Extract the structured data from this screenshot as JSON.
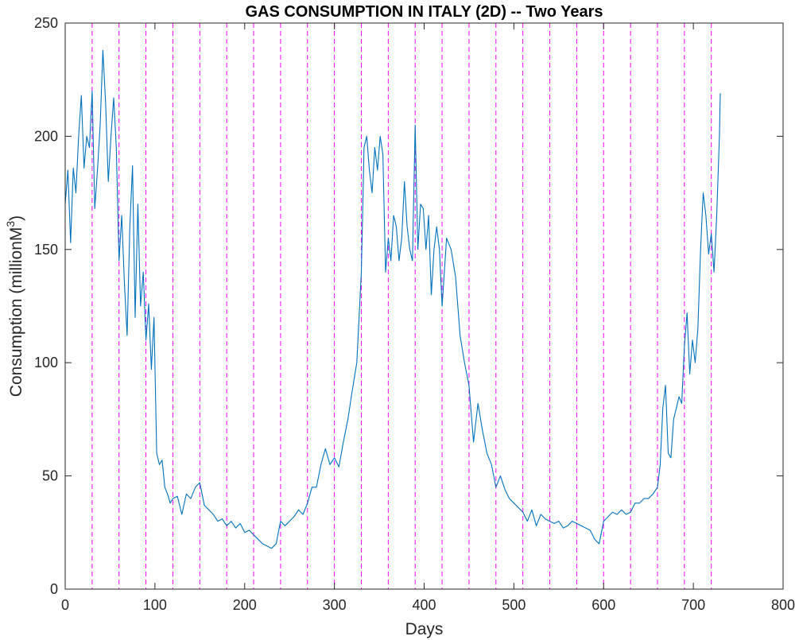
{
  "chart_data": {
    "type": "line",
    "title": "GAS CONSUMPTION IN ITALY (2D) -- Two Years",
    "xlabel": "Days",
    "ylabel_main": "Consumption (millionM",
    "ylabel_sup": "3",
    "ylabel_end": ")",
    "xlim": [
      0,
      800
    ],
    "ylim": [
      0,
      250
    ],
    "xticks": [
      0,
      100,
      200,
      300,
      400,
      500,
      600,
      700,
      800
    ],
    "yticks": [
      0,
      50,
      100,
      150,
      200,
      250
    ],
    "grid": false,
    "series_color": "#0072BD",
    "vline_color": "#FF00FF",
    "vlines": [
      30,
      60,
      90,
      120,
      150,
      180,
      210,
      240,
      270,
      300,
      330,
      360,
      390,
      420,
      450,
      480,
      510,
      540,
      570,
      600,
      630,
      660,
      690,
      720
    ],
    "series": [
      {
        "x": [
          0,
          3,
          6,
          9,
          12,
          15,
          18,
          21,
          24,
          27,
          30,
          33,
          36,
          39,
          42,
          45,
          48,
          51,
          54,
          57,
          60,
          63,
          66,
          69,
          72,
          75,
          78,
          81,
          84,
          87,
          90,
          93,
          96,
          99,
          102,
          105,
          108,
          111,
          114,
          117,
          120,
          125,
          130,
          135,
          140,
          145,
          150,
          155,
          160,
          165,
          170,
          175,
          180,
          185,
          190,
          195,
          200,
          205,
          210,
          215,
          220,
          225,
          230,
          235,
          240,
          245,
          250,
          255,
          260,
          265,
          270,
          275,
          280,
          285,
          290,
          295,
          300,
          305,
          310,
          315,
          320,
          325,
          330,
          333,
          336,
          339,
          342,
          345,
          348,
          351,
          354,
          357,
          360,
          363,
          366,
          369,
          372,
          375,
          378,
          381,
          384,
          387,
          390,
          393,
          396,
          399,
          402,
          405,
          408,
          411,
          414,
          417,
          420,
          425,
          430,
          435,
          440,
          445,
          450,
          455,
          460,
          465,
          470,
          475,
          480,
          485,
          490,
          495,
          500,
          505,
          510,
          515,
          520,
          525,
          530,
          535,
          540,
          545,
          550,
          555,
          560,
          565,
          570,
          575,
          580,
          585,
          590,
          595,
          600,
          605,
          610,
          615,
          620,
          625,
          630,
          635,
          640,
          645,
          650,
          655,
          660,
          663,
          666,
          669,
          672,
          675,
          678,
          681,
          684,
          687,
          690,
          693,
          696,
          699,
          702,
          705,
          708,
          711,
          714,
          717,
          720,
          723,
          726,
          729,
          730
        ],
        "y": [
          170,
          185,
          153,
          186,
          175,
          200,
          218,
          186,
          200,
          195,
          220,
          168,
          185,
          205,
          238,
          215,
          180,
          200,
          217,
          195,
          145,
          165,
          135,
          112,
          160,
          187,
          120,
          170,
          125,
          140,
          110,
          126,
          97,
          120,
          60,
          55,
          57,
          45,
          42,
          38,
          40,
          41,
          33,
          42,
          40,
          45,
          47,
          37,
          35,
          33,
          30,
          31,
          28,
          30,
          27,
          29,
          25,
          26,
          24,
          22,
          20,
          19,
          18,
          20,
          30,
          28,
          30,
          32,
          35,
          33,
          38,
          45,
          45,
          55,
          62,
          55,
          58,
          54,
          65,
          75,
          88,
          100,
          140,
          195,
          200,
          185,
          175,
          195,
          185,
          200,
          192,
          140,
          155,
          145,
          165,
          160,
          145,
          155,
          180,
          160,
          150,
          145,
          205,
          150,
          170,
          168,
          150,
          165,
          130,
          150,
          160,
          150,
          125,
          155,
          150,
          138,
          112,
          100,
          90,
          65,
          82,
          70,
          60,
          55,
          45,
          50,
          44,
          40,
          38,
          36,
          34,
          30,
          35,
          28,
          33,
          31,
          30,
          29,
          30,
          27,
          28,
          30,
          29,
          28,
          27,
          26,
          22,
          20,
          30,
          32,
          34,
          33,
          35,
          33,
          34,
          38,
          38,
          40,
          40,
          42,
          45,
          55,
          80,
          90,
          60,
          58,
          75,
          80,
          85,
          82,
          107,
          122,
          95,
          110,
          100,
          115,
          150,
          175,
          165,
          148,
          157,
          140,
          165,
          200,
          219
        ]
      }
    ]
  }
}
